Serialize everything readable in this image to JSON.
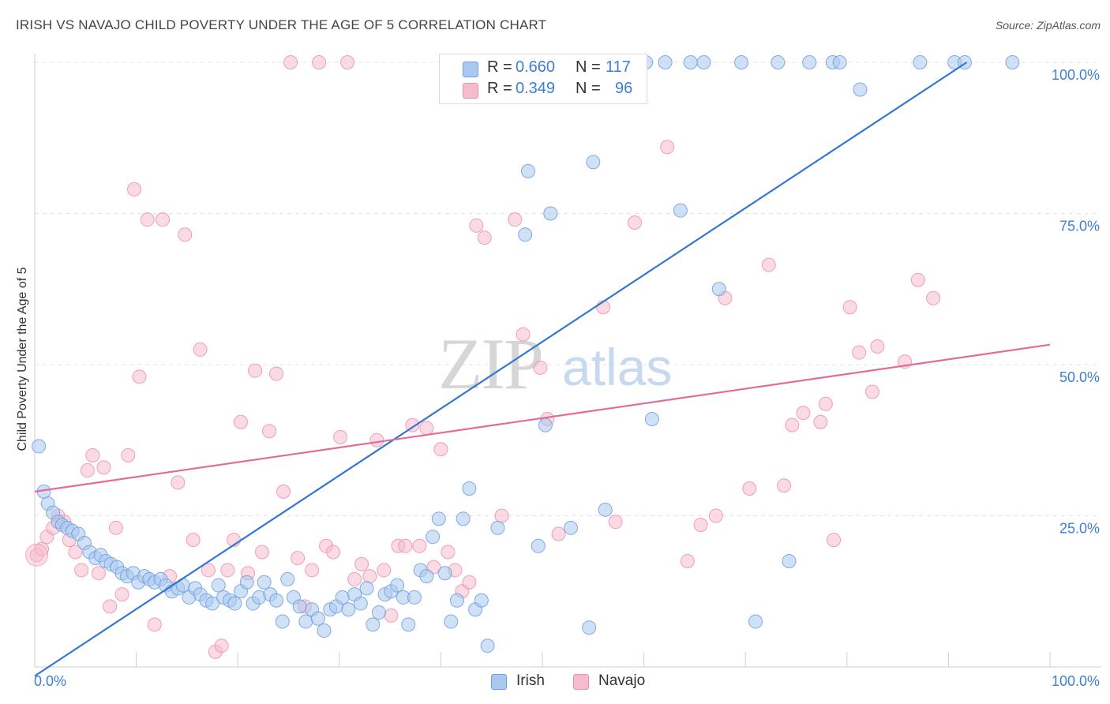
{
  "title": "IRISH VS NAVAJO CHILD POVERTY UNDER THE AGE OF 5 CORRELATION CHART",
  "source": "Source: ZipAtlas.com",
  "watermark": {
    "zip": "ZIP",
    "atlas": "atlas"
  },
  "colors": {
    "irish_fill": "#aac8ee",
    "irish_stroke": "#6b9fe0",
    "irish_line": "#3477d1",
    "navajo_fill": "#f5bccc",
    "navajo_stroke": "#ee8fac",
    "navajo_line": "#e46b98",
    "tick_text": "#3d7fd6",
    "grid": "#e3e3e3"
  },
  "legend": {
    "rows": [
      {
        "r_label": "R =",
        "r_value": "0.660",
        "n_label": "N =",
        "n_value": "117"
      },
      {
        "r_label": "R =",
        "r_value": "0.349",
        "n_label": "N =",
        "n_value": "96"
      }
    ]
  },
  "bottom_legend": {
    "irish": "Irish",
    "navajo": "Navajo"
  },
  "chart_data": {
    "type": "scatter",
    "ylabel": "Child Poverty Under the Age of 5",
    "xlim": [
      0,
      100
    ],
    "ylim": [
      0,
      100
    ],
    "x_tick_labels": [
      "0.0%",
      "100.0%"
    ],
    "y_ticks": [
      {
        "value": 25,
        "label": "25.0%"
      },
      {
        "value": 50,
        "label": "50.0%"
      },
      {
        "value": 75,
        "label": "75.0%"
      },
      {
        "value": 100,
        "label": "100.0%"
      }
    ],
    "grid": true,
    "series": [
      {
        "name": "Irish",
        "r": 0.66,
        "n": 117,
        "trend": {
          "x": [
            0,
            91.8
          ],
          "y": [
            -1.5,
            100
          ]
        },
        "points": [
          [
            0.4,
            36.5
          ],
          [
            0.9,
            29
          ],
          [
            1.3,
            27
          ],
          [
            1.8,
            25.5
          ],
          [
            2.3,
            24
          ],
          [
            2.7,
            23.5
          ],
          [
            3.2,
            23
          ],
          [
            3.7,
            22.5
          ],
          [
            4.3,
            22
          ],
          [
            4.9,
            20.5
          ],
          [
            5.4,
            19
          ],
          [
            6.0,
            18
          ],
          [
            6.5,
            18.5
          ],
          [
            7.0,
            17.5
          ],
          [
            7.5,
            17
          ],
          [
            8.1,
            16.5
          ],
          [
            8.6,
            15.5
          ],
          [
            9.1,
            15
          ],
          [
            9.7,
            15.5
          ],
          [
            10.2,
            14
          ],
          [
            10.8,
            15
          ],
          [
            11.3,
            14.5
          ],
          [
            11.8,
            14
          ],
          [
            12.4,
            14.5
          ],
          [
            12.9,
            13.5
          ],
          [
            13.5,
            12.5
          ],
          [
            14.1,
            13
          ],
          [
            14.6,
            13.5
          ],
          [
            15.2,
            11.5
          ],
          [
            15.8,
            13
          ],
          [
            16.3,
            12
          ],
          [
            16.9,
            11
          ],
          [
            17.5,
            10.5
          ],
          [
            18.1,
            13.5
          ],
          [
            18.6,
            11.5
          ],
          [
            19.2,
            11
          ],
          [
            19.7,
            10.5
          ],
          [
            20.3,
            12.5
          ],
          [
            20.9,
            14
          ],
          [
            21.5,
            10.5
          ],
          [
            22.1,
            11.5
          ],
          [
            22.6,
            14
          ],
          [
            23.2,
            12
          ],
          [
            23.8,
            11
          ],
          [
            24.4,
            7.5
          ],
          [
            24.9,
            14.5
          ],
          [
            25.5,
            11.5
          ],
          [
            26.1,
            10
          ],
          [
            26.7,
            7.5
          ],
          [
            27.3,
            9.5
          ],
          [
            27.9,
            8
          ],
          [
            28.5,
            6
          ],
          [
            29.1,
            9.5
          ],
          [
            29.7,
            10
          ],
          [
            30.3,
            11.5
          ],
          [
            30.9,
            9.5
          ],
          [
            31.5,
            12
          ],
          [
            32.1,
            10.5
          ],
          [
            32.7,
            13
          ],
          [
            33.3,
            7
          ],
          [
            33.9,
            9
          ],
          [
            34.5,
            12
          ],
          [
            35.1,
            12.5
          ],
          [
            35.7,
            13.5
          ],
          [
            36.3,
            11.5
          ],
          [
            36.8,
            7
          ],
          [
            37.4,
            11.5
          ],
          [
            38.0,
            16
          ],
          [
            38.6,
            15
          ],
          [
            39.2,
            21.5
          ],
          [
            39.8,
            24.5
          ],
          [
            40.4,
            15.5
          ],
          [
            41.0,
            7.5
          ],
          [
            41.6,
            11
          ],
          [
            42.2,
            24.5
          ],
          [
            42.8,
            29.5
          ],
          [
            43.4,
            9.5
          ],
          [
            44.0,
            11
          ],
          [
            44.6,
            3.5
          ],
          [
            45.6,
            23
          ],
          [
            46.3,
            100
          ],
          [
            47.4,
            100
          ],
          [
            48.3,
            71.5
          ],
          [
            48.6,
            82
          ],
          [
            49.6,
            20
          ],
          [
            50.3,
            40
          ],
          [
            50.8,
            75
          ],
          [
            51.3,
            100
          ],
          [
            52.0,
            100
          ],
          [
            52.8,
            23
          ],
          [
            53.2,
            100
          ],
          [
            54.0,
            100
          ],
          [
            54.6,
            6.5
          ],
          [
            55.0,
            83.5
          ],
          [
            56.2,
            26
          ],
          [
            56.6,
            100
          ],
          [
            57.8,
            100
          ],
          [
            59.0,
            100
          ],
          [
            60.2,
            100
          ],
          [
            60.8,
            41
          ],
          [
            62.1,
            100
          ],
          [
            63.6,
            75.5
          ],
          [
            64.6,
            100
          ],
          [
            65.9,
            100
          ],
          [
            67.4,
            62.5
          ],
          [
            69.6,
            100
          ],
          [
            71.0,
            7.5
          ],
          [
            73.2,
            100
          ],
          [
            74.3,
            17.5
          ],
          [
            76.3,
            100
          ],
          [
            78.6,
            100
          ],
          [
            79.3,
            100
          ],
          [
            81.3,
            95.5
          ],
          [
            87.2,
            100
          ],
          [
            90.6,
            100
          ],
          [
            91.6,
            100
          ],
          [
            96.3,
            100
          ]
        ]
      },
      {
        "name": "Navajo",
        "r": 0.349,
        "n": 96,
        "trend": {
          "x": [
            0,
            100
          ],
          "y": [
            29,
            53.3
          ]
        },
        "points": [
          [
            0.2,
            18.5
          ],
          [
            0.7,
            19.5
          ],
          [
            1.2,
            21.5
          ],
          [
            1.8,
            23
          ],
          [
            2.3,
            25
          ],
          [
            2.9,
            24
          ],
          [
            3.4,
            21
          ],
          [
            4.0,
            19
          ],
          [
            4.6,
            16
          ],
          [
            5.2,
            32.5
          ],
          [
            5.7,
            35
          ],
          [
            6.3,
            15.5
          ],
          [
            6.8,
            33
          ],
          [
            7.4,
            10
          ],
          [
            8.0,
            23
          ],
          [
            8.6,
            12
          ],
          [
            9.2,
            35
          ],
          [
            9.8,
            79
          ],
          [
            10.3,
            48
          ],
          [
            11.1,
            74
          ],
          [
            11.8,
            7
          ],
          [
            12.6,
            74
          ],
          [
            13.3,
            15
          ],
          [
            14.1,
            30.5
          ],
          [
            14.8,
            71.5
          ],
          [
            15.6,
            21
          ],
          [
            16.3,
            52.5
          ],
          [
            17.1,
            16
          ],
          [
            17.8,
            2.5
          ],
          [
            18.4,
            3.5
          ],
          [
            19.0,
            16
          ],
          [
            19.6,
            21
          ],
          [
            20.3,
            40.5
          ],
          [
            21.0,
            15.5
          ],
          [
            21.7,
            49
          ],
          [
            22.4,
            19
          ],
          [
            23.1,
            39
          ],
          [
            23.8,
            48.5
          ],
          [
            24.5,
            29
          ],
          [
            25.2,
            100
          ],
          [
            25.9,
            18
          ],
          [
            26.6,
            10
          ],
          [
            27.3,
            16
          ],
          [
            28.0,
            100
          ],
          [
            28.7,
            20
          ],
          [
            29.4,
            19
          ],
          [
            30.1,
            38
          ],
          [
            30.8,
            100
          ],
          [
            31.5,
            14.5
          ],
          [
            32.2,
            17
          ],
          [
            33.0,
            15
          ],
          [
            33.7,
            37.5
          ],
          [
            34.4,
            16
          ],
          [
            35.1,
            8.5
          ],
          [
            35.8,
            20
          ],
          [
            36.5,
            20
          ],
          [
            37.2,
            40
          ],
          [
            37.9,
            20
          ],
          [
            38.6,
            39.5
          ],
          [
            39.3,
            16.5
          ],
          [
            40.0,
            36
          ],
          [
            40.7,
            19
          ],
          [
            41.4,
            16
          ],
          [
            42.1,
            12.5
          ],
          [
            42.8,
            14
          ],
          [
            43.5,
            73
          ],
          [
            44.3,
            71
          ],
          [
            46.0,
            25
          ],
          [
            47.3,
            74
          ],
          [
            48.1,
            55
          ],
          [
            49.8,
            49.5
          ],
          [
            50.5,
            41
          ],
          [
            51.6,
            22
          ],
          [
            56.0,
            59.5
          ],
          [
            57.2,
            24
          ],
          [
            59.1,
            73.5
          ],
          [
            62.3,
            86
          ],
          [
            64.3,
            17.5
          ],
          [
            65.6,
            23.5
          ],
          [
            67.1,
            25
          ],
          [
            68.0,
            61
          ],
          [
            70.4,
            29.5
          ],
          [
            72.3,
            66.5
          ],
          [
            73.8,
            30
          ],
          [
            74.6,
            40
          ],
          [
            75.7,
            42
          ],
          [
            77.4,
            40.5
          ],
          [
            77.9,
            43.5
          ],
          [
            78.7,
            21
          ],
          [
            80.3,
            59.5
          ],
          [
            81.2,
            52
          ],
          [
            82.5,
            45.5
          ],
          [
            83.0,
            53
          ],
          [
            85.7,
            50.5
          ],
          [
            87.0,
            64
          ],
          [
            88.5,
            61
          ]
        ]
      }
    ]
  }
}
